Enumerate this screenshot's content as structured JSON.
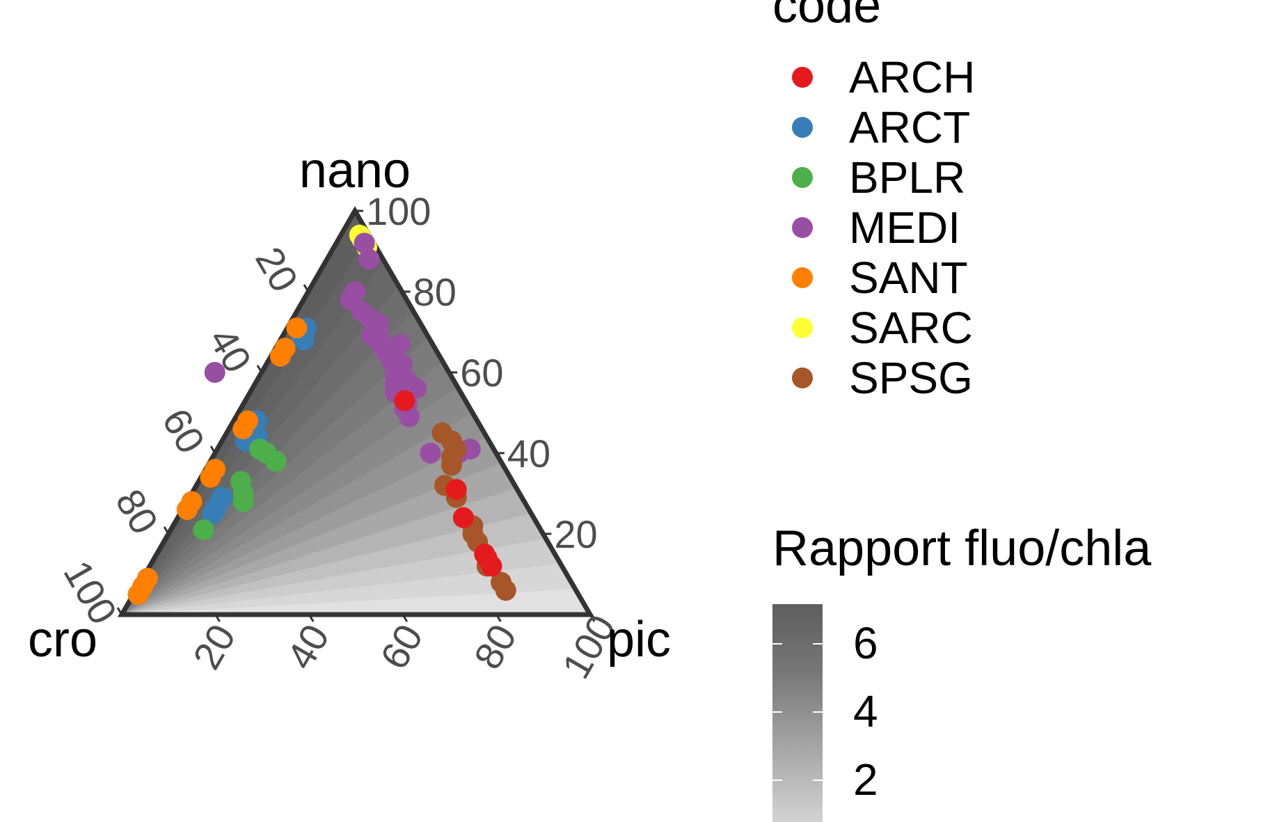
{
  "chart_data": {
    "type": "scatter",
    "subtype": "ternary",
    "apex_labels": {
      "top": "nano",
      "left": "cro",
      "right": "pic"
    },
    "axis_ticks": [
      "20",
      "40",
      "60",
      "80",
      "100"
    ],
    "axis_range": [
      0,
      100
    ],
    "grid": false,
    "legend_position": "right",
    "color_legend": {
      "title": "code",
      "entries": [
        {
          "name": "ARCH",
          "color": "#e41a1c"
        },
        {
          "name": "ARCT",
          "color": "#377eb8"
        },
        {
          "name": "BPLR",
          "color": "#4daf4a"
        },
        {
          "name": "MEDI",
          "color": "#984ea3"
        },
        {
          "name": "SANT",
          "color": "#ff7f00"
        },
        {
          "name": "SARC",
          "color": "#ffff33"
        },
        {
          "name": "SPSG",
          "color": "#a65628"
        }
      ]
    },
    "fill_legend": {
      "title": "Rapport fluo/chla",
      "ticks": [
        "2",
        "4",
        "6"
      ],
      "low_color": "#d3d3d3",
      "high_color": "#5e5e5e"
    },
    "series": [
      {
        "name": "SARC",
        "points": [
          [
            94,
            2,
            4
          ],
          [
            93,
            2,
            5
          ],
          [
            91,
            2,
            7
          ]
        ]
      },
      {
        "name": "ARCT",
        "points": [
          [
            71,
            25,
            4
          ],
          [
            69,
            27,
            4
          ],
          [
            68,
            27,
            5
          ],
          [
            48,
            47,
            5
          ],
          [
            46,
            49,
            5
          ],
          [
            44,
            51,
            5
          ],
          [
            43,
            52,
            5
          ],
          [
            44,
            49,
            7
          ],
          [
            29,
            64,
            7
          ],
          [
            28,
            65,
            7
          ],
          [
            26,
            67,
            7
          ],
          [
            25,
            68,
            7
          ]
        ]
      },
      {
        "name": "BPLR",
        "points": [
          [
            41,
            50,
            9
          ],
          [
            40,
            49,
            11
          ],
          [
            38,
            48,
            14
          ],
          [
            33,
            58,
            9
          ],
          [
            30,
            59,
            11
          ],
          [
            28,
            60,
            12
          ],
          [
            21,
            72,
            7
          ]
        ]
      },
      {
        "name": "SANT",
        "points": [
          [
            71,
            27,
            2
          ],
          [
            66,
            32,
            2
          ],
          [
            64,
            34,
            2
          ],
          [
            48,
            49,
            3
          ],
          [
            46,
            51,
            3
          ],
          [
            36,
            62,
            2
          ],
          [
            34,
            64,
            2
          ],
          [
            28,
            71,
            1
          ],
          [
            26,
            73,
            1
          ],
          [
            9,
            90,
            1
          ],
          [
            7,
            92,
            1
          ],
          [
            5,
            94,
            1
          ]
        ]
      },
      {
        "name": "MEDI",
        "points": [
          [
            92,
            2,
            6
          ],
          [
            88,
            3,
            9
          ],
          [
            80,
            10,
            10
          ],
          [
            78,
            12,
            10
          ],
          [
            75,
            11,
            14
          ],
          [
            73,
            10,
            17
          ],
          [
            72,
            9,
            19
          ],
          [
            70,
            10,
            20
          ],
          [
            69,
            12,
            19
          ],
          [
            67,
            11,
            22
          ],
          [
            65,
            11,
            24
          ],
          [
            64,
            10,
            26
          ],
          [
            62,
            11,
            27
          ],
          [
            60,
            11,
            29
          ],
          [
            59,
            12,
            29
          ],
          [
            57,
            13,
            30
          ],
          [
            55,
            14,
            31
          ],
          [
            54,
            13,
            33
          ],
          [
            52,
            13,
            35
          ],
          [
            51,
            14,
            35
          ],
          [
            49,
            14,
            37
          ],
          [
            40,
            14,
            46
          ],
          [
            40,
            8,
            52
          ],
          [
            41,
            5,
            54
          ],
          [
            67,
            7,
            26
          ],
          [
            62,
            9,
            29
          ],
          [
            58,
            10,
            32
          ],
          [
            56,
            9,
            35
          ],
          [
            60,
            50,
            -10
          ]
        ]
      },
      {
        "name": "SPSG",
        "points": [
          [
            45,
            9,
            46
          ],
          [
            43,
            8,
            49
          ],
          [
            41,
            8,
            51
          ],
          [
            39,
            10,
            51
          ],
          [
            37,
            11,
            52
          ],
          [
            32,
            15,
            53
          ],
          [
            29,
            14,
            57
          ],
          [
            24,
            15,
            61
          ],
          [
            22,
            14,
            64
          ],
          [
            20,
            15,
            65
          ],
          [
            18,
            15,
            67
          ],
          [
            15,
            15,
            70
          ],
          [
            12,
            16,
            72
          ],
          [
            8,
            15,
            77
          ],
          [
            6,
            15,
            79
          ]
        ]
      },
      {
        "name": "ARCH",
        "points": [
          [
            53,
            13,
            34
          ],
          [
            31,
            13,
            56
          ],
          [
            24,
            15,
            61
          ],
          [
            15,
            15,
            70
          ],
          [
            14,
            15,
            71
          ],
          [
            12,
            15,
            73
          ]
        ]
      }
    ]
  }
}
